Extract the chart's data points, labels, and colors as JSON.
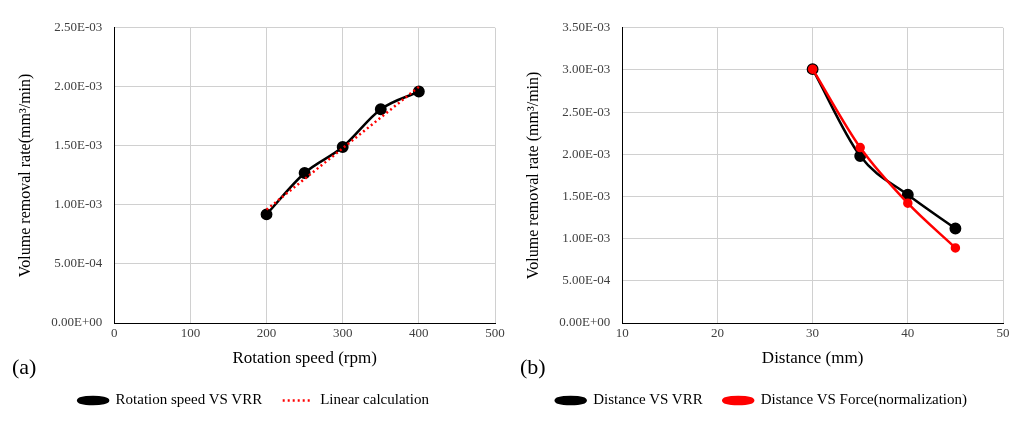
{
  "chart_data": [
    {
      "type": "line",
      "xlabel": "Rotation speed (rpm)",
      "ylabel": "Volume removal rate(mm³/min)",
      "annotations": [
        "(a)"
      ],
      "x": [
        200,
        250,
        300,
        350,
        400
      ],
      "series": [
        {
          "name": "Rotation speed VS VRR",
          "color": "#000000",
          "marker": "circle",
          "line_style": "solid",
          "values": [
            0.00092,
            0.00127,
            0.00149,
            0.00181,
            0.00196
          ]
        },
        {
          "name": "Linear calculation",
          "color": "#ff0000",
          "marker": "none",
          "line_style": "dotted",
          "x": [
            200,
            400
          ],
          "values": [
            0.00096,
            0.002
          ]
        }
      ],
      "xlim": [
        0,
        500
      ],
      "xticks": [
        0,
        100,
        200,
        300,
        400,
        500
      ],
      "ylim": [
        0,
        0.0025
      ],
      "yticks": [
        {
          "value": 0,
          "label": "0.00E+00"
        },
        {
          "value": 0.0005,
          "label": "5.00E-04"
        },
        {
          "value": 0.001,
          "label": "1.00E-03"
        },
        {
          "value": 0.0015,
          "label": "1.50E-03"
        },
        {
          "value": 0.002,
          "label": "2.00E-03"
        },
        {
          "value": 0.0025,
          "label": "2.50E-03"
        }
      ],
      "grid": true,
      "legend": "bottom"
    },
    {
      "type": "line",
      "xlabel": "Distance (mm)",
      "ylabel": "Volume removal rate (mm³/min)",
      "annotations": [
        "(b)"
      ],
      "x": [
        30,
        35,
        40,
        45
      ],
      "series": [
        {
          "name": "Distance VS VRR",
          "color": "#000000",
          "marker": "circle",
          "line_style": "solid",
          "values": [
            0.00301,
            0.00198,
            0.00152,
            0.00112
          ]
        },
        {
          "name": "Distance VS Force(normalization)",
          "color": "#ff0000",
          "marker": "circle",
          "line_style": "solid",
          "values": [
            0.00301,
            0.00208,
            0.00142,
            0.00089
          ]
        }
      ],
      "xlim": [
        10,
        50
      ],
      "xticks": [
        10,
        20,
        30,
        40,
        50
      ],
      "ylim": [
        0,
        0.0035
      ],
      "yticks": [
        {
          "value": 0,
          "label": "0.00E+00"
        },
        {
          "value": 0.0005,
          "label": "5.00E-04"
        },
        {
          "value": 0.001,
          "label": "1.00E-03"
        },
        {
          "value": 0.0015,
          "label": "1.50E-03"
        },
        {
          "value": 0.002,
          "label": "2.00E-03"
        },
        {
          "value": 0.0025,
          "label": "2.50E-03"
        },
        {
          "value": 0.003,
          "label": "3.00E-03"
        },
        {
          "value": 0.0035,
          "label": "3.50E-03"
        }
      ],
      "grid": true,
      "legend": "bottom"
    }
  ]
}
